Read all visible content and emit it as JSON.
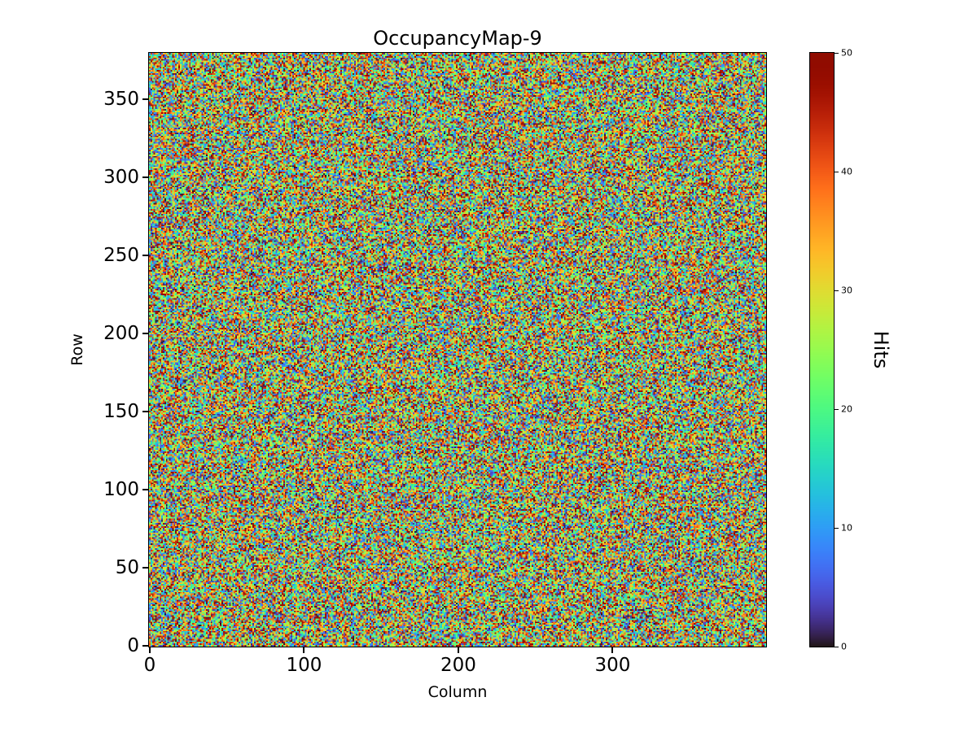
{
  "figure": {
    "background": "#ffffff",
    "text_color": "#000000"
  },
  "chart_data": {
    "type": "heatmap",
    "title": "OccupancyMap-9",
    "xlabel": "Column",
    "ylabel": "Row",
    "colorbar_label": "Hits",
    "colormap": "turbo",
    "vmin": 0,
    "vmax": 50,
    "cols": 400,
    "rows": 380,
    "x_ticks": [
      0,
      100,
      200,
      300
    ],
    "y_ticks": [
      0,
      50,
      100,
      150,
      200,
      250,
      300,
      350
    ],
    "colorbar_ticks": [
      0,
      10,
      20,
      30,
      40,
      50
    ],
    "values": "uniform-random-noise-per-pixel",
    "value_distribution": {
      "kind": "uniform",
      "low": 0,
      "high": 50
    },
    "seed": 9,
    "grid": false,
    "legend": "none (colorbar on right)"
  }
}
